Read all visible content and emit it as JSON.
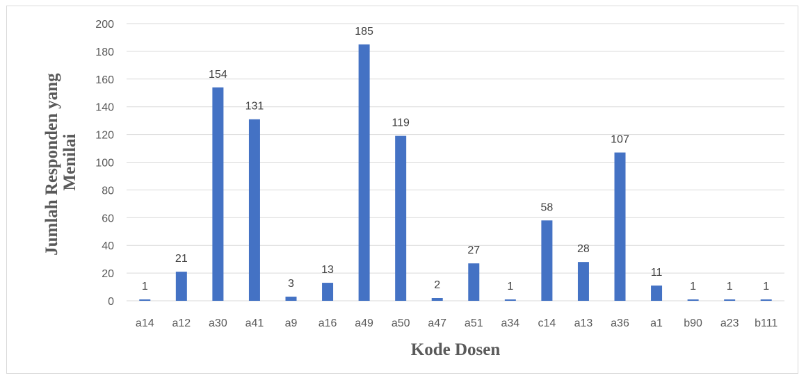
{
  "chart_data": {
    "type": "bar",
    "title": "",
    "xlabel": "Kode Dosen",
    "ylabel_lines": [
      "Jumlah Responden yang",
      "Menilai"
    ],
    "categories": [
      "a14",
      "a12",
      "a30",
      "a41",
      "a9",
      "a16",
      "a49",
      "a50",
      "a47",
      "a51",
      "a34",
      "c14",
      "a13",
      "a36",
      "a1",
      "b90",
      "a23",
      "b111"
    ],
    "values": [
      1,
      21,
      154,
      131,
      3,
      13,
      185,
      119,
      2,
      27,
      1,
      58,
      28,
      107,
      11,
      1,
      1,
      1
    ],
    "ylim": [
      0,
      200
    ],
    "yticks": [
      0,
      20,
      40,
      60,
      80,
      100,
      120,
      140,
      160,
      180,
      200
    ],
    "grid": true,
    "legend": "none",
    "colors": {
      "bar": "#4472c4",
      "grid": "#d9d9d9",
      "axis": "#d9d9d9"
    }
  }
}
